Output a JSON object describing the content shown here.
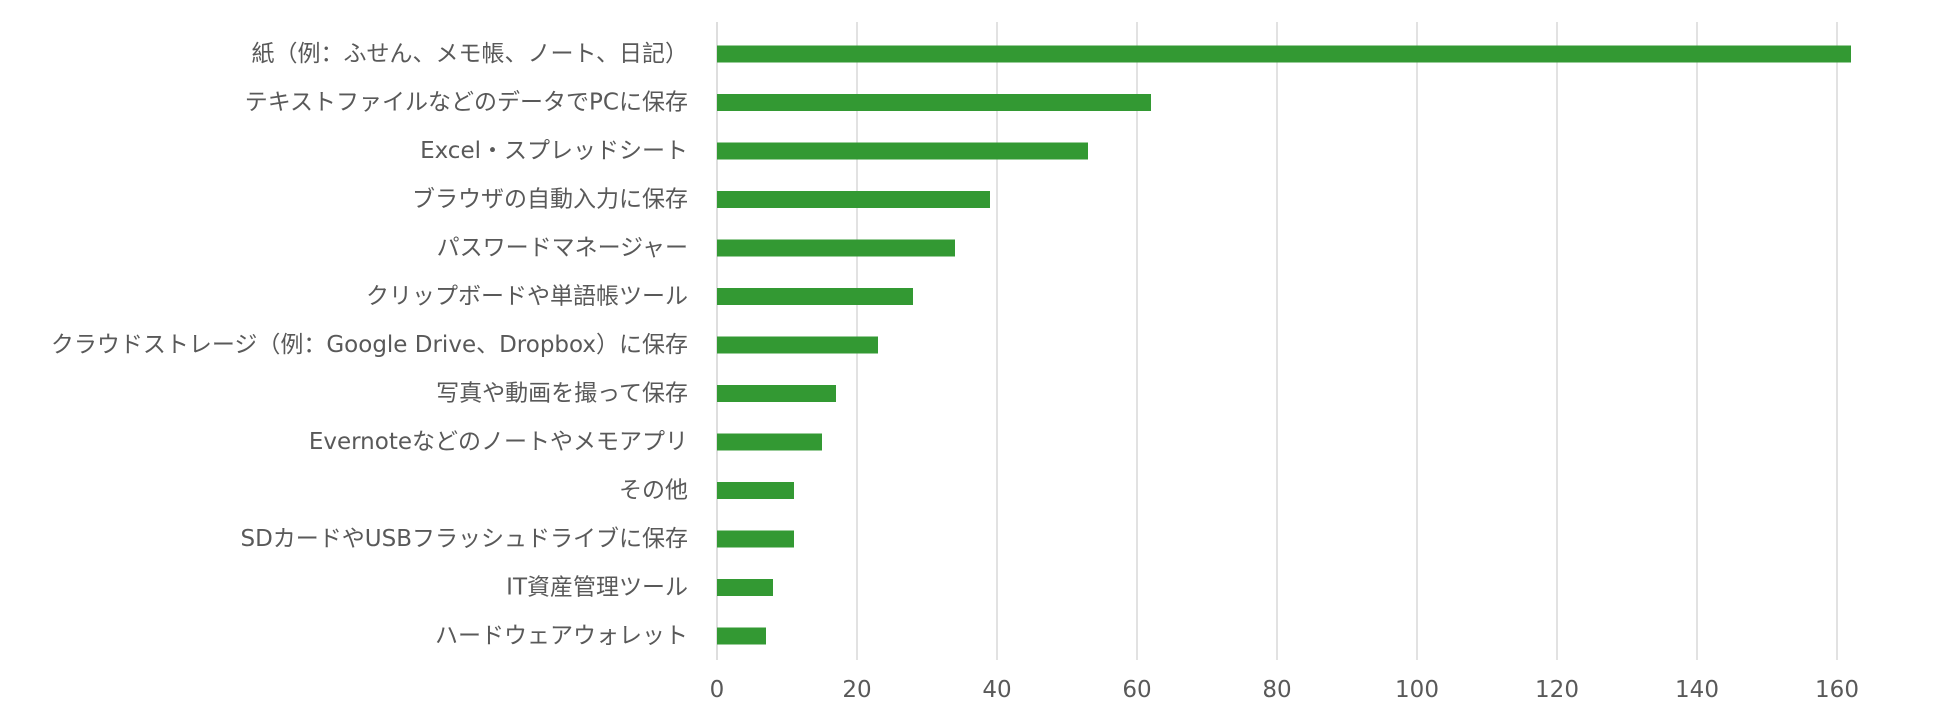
{
  "chart_data": {
    "type": "bar",
    "orientation": "horizontal",
    "categories": [
      "紙（例：ふせん、メモ帳、ノート、日記）",
      "テキストファイルなどのデータでPCに保存",
      "Excel・スプレッドシート",
      "ブラウザの自動入力に保存",
      "パスワードマネージャー",
      "クリップボードや単語帳ツール",
      "クラウドストレージ（例：Google Drive、Dropbox）に保存",
      "写真や動画を撮って保存",
      "Evernoteなどのノートやメモアプリ",
      "その他",
      "SDカードやUSBフラッシュドライブに保存",
      "IT資産管理ツール",
      "ハードウェアウォレット"
    ],
    "values": [
      162,
      62,
      53,
      39,
      34,
      28,
      23,
      17,
      15,
      11,
      11,
      8,
      7
    ],
    "title": "",
    "xlabel": "",
    "ylabel": "",
    "xlim": [
      0,
      170
    ],
    "xticks": [
      0,
      20,
      40,
      60,
      80,
      100,
      120,
      140,
      160
    ],
    "tick_labels": [
      "0",
      "20",
      "40",
      "60",
      "80",
      "100",
      "120",
      "140",
      "160"
    ],
    "grid": "vertical",
    "legend": "none",
    "colors": {
      "bar": "#339933",
      "grid": "#d9d9d9",
      "text": "#595959"
    }
  }
}
